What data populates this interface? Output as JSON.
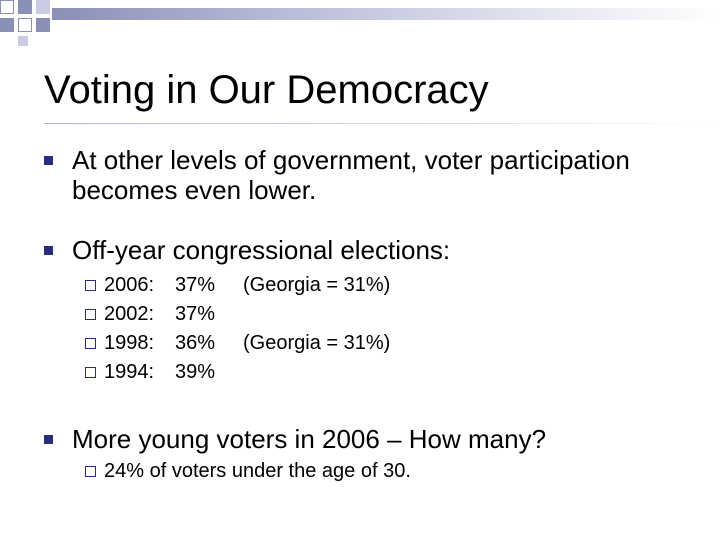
{
  "slide": {
    "title": "Voting in Our Democracy",
    "bullets": [
      {
        "lines": [
          "At other levels of government, voter participation",
          "becomes even lower."
        ]
      },
      {
        "text": "Off-year congressional elections:",
        "sub": [
          {
            "year": "2006:",
            "percent": "37%",
            "note": "(Georgia = 31%)"
          },
          {
            "year": "2002:",
            "percent": "37%",
            "note": ""
          },
          {
            "year": "1998:",
            "percent": "36%",
            "note": "(Georgia = 31%)"
          },
          {
            "year": "1994:",
            "percent": "39%",
            "note": ""
          }
        ]
      },
      {
        "text": "More young voters in 2006 – How many?",
        "sub": [
          {
            "text": "24% of voters under the age of 30."
          }
        ]
      }
    ]
  },
  "colors": {
    "bullet": "#2a2c7e",
    "decor_dark": "#8a8fb6",
    "decor_light": "#c9cce2"
  },
  "icons": {
    "main_bullet": "filled-square",
    "sub_bullet": "hollow-square"
  }
}
